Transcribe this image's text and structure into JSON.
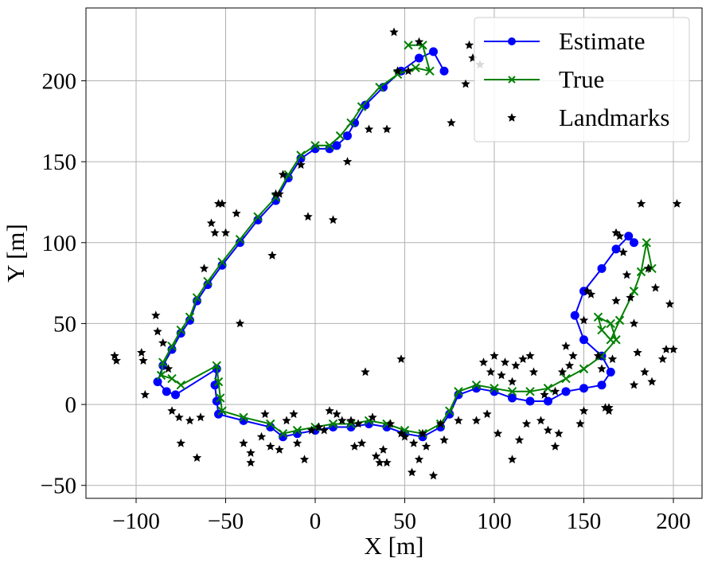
{
  "chart_data": {
    "type": "scatter",
    "title": "",
    "xlabel": "X [m]",
    "ylabel": "Y [m]",
    "xlim": [
      -128,
      216
    ],
    "ylim": [
      -58,
      245
    ],
    "xticks": [
      -100,
      -50,
      0,
      50,
      100,
      150,
      200
    ],
    "yticks": [
      -50,
      0,
      50,
      100,
      150,
      200
    ],
    "xtick_labels": [
      "−100",
      "−50",
      "0",
      "50",
      "100",
      "150",
      "200"
    ],
    "ytick_labels": [
      "−50",
      "0",
      "50",
      "100",
      "150",
      "200"
    ],
    "grid": true,
    "legend_position": "top-right",
    "legend": [
      "Estimate",
      "True",
      "Landmarks"
    ],
    "colors": {
      "estimate": "#0000ff",
      "true": "#008000",
      "landmarks": "#000000",
      "grid": "#b0b0b0"
    },
    "series": [
      {
        "name": "Estimate",
        "marker": "circle",
        "points": [
          [
            72,
            206
          ],
          [
            66,
            218
          ],
          [
            58,
            214
          ],
          [
            48,
            206
          ],
          [
            38,
            196
          ],
          [
            28,
            185
          ],
          [
            22,
            174
          ],
          [
            18,
            166
          ],
          [
            12,
            160
          ],
          [
            8,
            158
          ],
          [
            0,
            158
          ],
          [
            -8,
            152
          ],
          [
            -15,
            140
          ],
          [
            -22,
            126
          ],
          [
            -32,
            114
          ],
          [
            -42,
            100
          ],
          [
            -52,
            86
          ],
          [
            -60,
            74
          ],
          [
            -66,
            64
          ],
          [
            -70,
            52
          ],
          [
            -75,
            44
          ],
          [
            -80,
            34
          ],
          [
            -85,
            24
          ],
          [
            -88,
            14
          ],
          [
            -83,
            8
          ],
          [
            -78,
            6
          ],
          [
            -55,
            22
          ],
          [
            -56,
            12
          ],
          [
            -55,
            2
          ],
          [
            -54,
            -6
          ],
          [
            -40,
            -10
          ],
          [
            -25,
            -14
          ],
          [
            -18,
            -20
          ],
          [
            -10,
            -18
          ],
          [
            0,
            -16
          ],
          [
            10,
            -14
          ],
          [
            20,
            -14
          ],
          [
            30,
            -12
          ],
          [
            40,
            -14
          ],
          [
            50,
            -18
          ],
          [
            60,
            -20
          ],
          [
            70,
            -14
          ],
          [
            75,
            -6
          ],
          [
            80,
            6
          ],
          [
            90,
            10
          ],
          [
            100,
            8
          ],
          [
            110,
            4
          ],
          [
            120,
            2
          ],
          [
            130,
            2
          ],
          [
            140,
            8
          ],
          [
            150,
            10
          ],
          [
            160,
            12
          ],
          [
            165,
            20
          ],
          [
            160,
            30
          ],
          [
            150,
            40
          ],
          [
            145,
            55
          ],
          [
            150,
            70
          ],
          [
            160,
            84
          ],
          [
            168,
            96
          ],
          [
            175,
            104
          ],
          [
            178,
            100
          ]
        ]
      },
      {
        "name": "True",
        "marker": "x",
        "points": [
          [
            52,
            222
          ],
          [
            60,
            222
          ],
          [
            64,
            206
          ],
          [
            56,
            208
          ],
          [
            46,
            204
          ],
          [
            36,
            196
          ],
          [
            26,
            184
          ],
          [
            20,
            174
          ],
          [
            14,
            166
          ],
          [
            8,
            160
          ],
          [
            0,
            160
          ],
          [
            -8,
            154
          ],
          [
            -15,
            142
          ],
          [
            -22,
            128
          ],
          [
            -32,
            116
          ],
          [
            -42,
            102
          ],
          [
            -52,
            88
          ],
          [
            -60,
            76
          ],
          [
            -66,
            66
          ],
          [
            -70,
            54
          ],
          [
            -75,
            46
          ],
          [
            -80,
            36
          ],
          [
            -85,
            26
          ],
          [
            -86,
            18
          ],
          [
            -80,
            16
          ],
          [
            -75,
            12
          ],
          [
            -55,
            24
          ],
          [
            -54,
            14
          ],
          [
            -53,
            4
          ],
          [
            -52,
            -4
          ],
          [
            -40,
            -8
          ],
          [
            -25,
            -12
          ],
          [
            -18,
            -18
          ],
          [
            -10,
            -16
          ],
          [
            0,
            -14
          ],
          [
            10,
            -12
          ],
          [
            20,
            -12
          ],
          [
            30,
            -10
          ],
          [
            40,
            -12
          ],
          [
            50,
            -16
          ],
          [
            60,
            -18
          ],
          [
            70,
            -12
          ],
          [
            75,
            -4
          ],
          [
            80,
            8
          ],
          [
            90,
            12
          ],
          [
            100,
            10
          ],
          [
            110,
            8
          ],
          [
            120,
            8
          ],
          [
            130,
            10
          ],
          [
            140,
            16
          ],
          [
            150,
            22
          ],
          [
            160,
            30
          ],
          [
            168,
            40
          ],
          [
            165,
            50
          ],
          [
            158,
            54
          ],
          [
            160,
            46
          ],
          [
            165,
            40
          ],
          [
            170,
            52
          ],
          [
            178,
            70
          ],
          [
            182,
            82
          ],
          [
            185,
            100
          ],
          [
            188,
            84
          ]
        ]
      }
    ],
    "landmarks": [
      [
        -112,
        30
      ],
      [
        -111,
        27
      ],
      [
        -97,
        32
      ],
      [
        -96,
        27
      ],
      [
        -95,
        6
      ],
      [
        -89,
        55
      ],
      [
        -88,
        45
      ],
      [
        -85,
        38
      ],
      [
        -82,
        22
      ],
      [
        -80,
        -4
      ],
      [
        -76,
        -8
      ],
      [
        -75,
        -24
      ],
      [
        -70,
        -10
      ],
      [
        -66,
        -33
      ],
      [
        -64,
        -8
      ],
      [
        -62,
        84
      ],
      [
        -58,
        112
      ],
      [
        -56,
        106
      ],
      [
        -54,
        124
      ],
      [
        -52,
        124
      ],
      [
        -50,
        106
      ],
      [
        -44,
        118
      ],
      [
        -42,
        50
      ],
      [
        -40,
        -24
      ],
      [
        -36,
        -30
      ],
      [
        -30,
        -20
      ],
      [
        -28,
        -6
      ],
      [
        -25,
        -26
      ],
      [
        -24,
        92
      ],
      [
        -22,
        130
      ],
      [
        -20,
        130
      ],
      [
        -18,
        142
      ],
      [
        -16,
        -10
      ],
      [
        -12,
        -6
      ],
      [
        -10,
        -24
      ],
      [
        -8,
        148
      ],
      [
        -6,
        -34
      ],
      [
        -4,
        116
      ],
      [
        -2,
        -16
      ],
      [
        2,
        -14
      ],
      [
        5,
        -16
      ],
      [
        8,
        -4
      ],
      [
        10,
        114
      ],
      [
        12,
        -6
      ],
      [
        15,
        -10
      ],
      [
        18,
        150
      ],
      [
        20,
        -10
      ],
      [
        22,
        -26
      ],
      [
        24,
        -12
      ],
      [
        26,
        -24
      ],
      [
        28,
        20
      ],
      [
        30,
        170
      ],
      [
        32,
        -8
      ],
      [
        34,
        -32
      ],
      [
        36,
        -36
      ],
      [
        38,
        -28
      ],
      [
        40,
        170
      ],
      [
        42,
        -12
      ],
      [
        44,
        230
      ],
      [
        46,
        206
      ],
      [
        48,
        28
      ],
      [
        48,
        -18
      ],
      [
        50,
        -20
      ],
      [
        52,
        206
      ],
      [
        54,
        -42
      ],
      [
        55,
        -24
      ],
      [
        58,
        224
      ],
      [
        60,
        -18
      ],
      [
        62,
        -26
      ],
      [
        66,
        -44
      ],
      [
        70,
        -12
      ],
      [
        72,
        -22
      ],
      [
        76,
        174
      ],
      [
        80,
        -10
      ],
      [
        84,
        198
      ],
      [
        86,
        222
      ],
      [
        88,
        214
      ],
      [
        90,
        -10
      ],
      [
        92,
        210
      ],
      [
        94,
        26
      ],
      [
        96,
        -6
      ],
      [
        98,
        20
      ],
      [
        100,
        30
      ],
      [
        102,
        -18
      ],
      [
        104,
        18
      ],
      [
        106,
        26
      ],
      [
        110,
        14
      ],
      [
        112,
        24
      ],
      [
        114,
        -22
      ],
      [
        116,
        28
      ],
      [
        118,
        -12
      ],
      [
        120,
        30
      ],
      [
        122,
        20
      ],
      [
        126,
        -10
      ],
      [
        128,
        6
      ],
      [
        130,
        -16
      ],
      [
        134,
        8
      ],
      [
        136,
        -18
      ],
      [
        138,
        20
      ],
      [
        140,
        36
      ],
      [
        142,
        24
      ],
      [
        144,
        30
      ],
      [
        148,
        -12
      ],
      [
        150,
        -4
      ],
      [
        150,
        52
      ],
      [
        152,
        70
      ],
      [
        154,
        68
      ],
      [
        158,
        30
      ],
      [
        160,
        22
      ],
      [
        162,
        -2
      ],
      [
        164,
        -4
      ],
      [
        166,
        28
      ],
      [
        168,
        64
      ],
      [
        168,
        106
      ],
      [
        170,
        104
      ],
      [
        172,
        94
      ],
      [
        174,
        80
      ],
      [
        176,
        66
      ],
      [
        178,
        50
      ],
      [
        178,
        12
      ],
      [
        180,
        32
      ],
      [
        182,
        124
      ],
      [
        184,
        20
      ],
      [
        186,
        84
      ],
      [
        188,
        14
      ],
      [
        190,
        72
      ],
      [
        194,
        28
      ],
      [
        196,
        34
      ],
      [
        198,
        62
      ],
      [
        200,
        34
      ],
      [
        202,
        124
      ],
      [
        -36,
        -36
      ],
      [
        -20,
        -28
      ],
      [
        40,
        -36
      ],
      [
        58,
        -34
      ],
      [
        110,
        -34
      ],
      [
        134,
        -26
      ],
      [
        164,
        -2
      ]
    ]
  }
}
